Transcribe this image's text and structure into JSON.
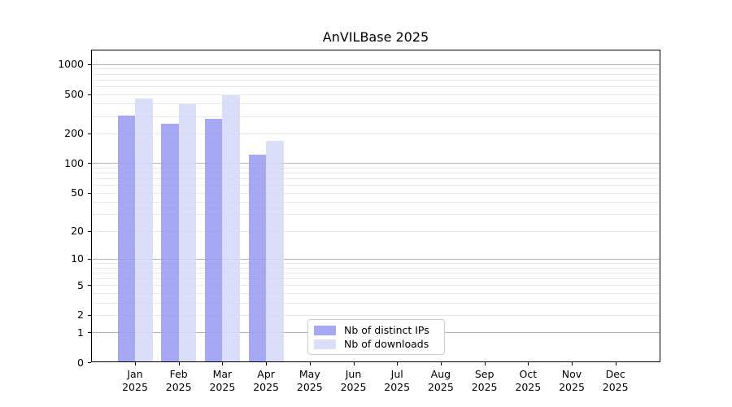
{
  "chart_data": {
    "type": "bar",
    "title": "AnVILBase 2025",
    "x": {
      "categories": [
        {
          "label": "Jan",
          "sublabel": "2025"
        },
        {
          "label": "Feb",
          "sublabel": "2025"
        },
        {
          "label": "Mar",
          "sublabel": "2025"
        },
        {
          "label": "Apr",
          "sublabel": "2025"
        },
        {
          "label": "May",
          "sublabel": "2025"
        },
        {
          "label": "Jun",
          "sublabel": "2025"
        },
        {
          "label": "Jul",
          "sublabel": "2025"
        },
        {
          "label": "Aug",
          "sublabel": "2025"
        },
        {
          "label": "Sep",
          "sublabel": "2025"
        },
        {
          "label": "Oct",
          "sublabel": "2025"
        },
        {
          "label": "Nov",
          "sublabel": "2025"
        },
        {
          "label": "Dec",
          "sublabel": "2025"
        }
      ]
    },
    "y": {
      "scale": "log1p",
      "lim": [
        0,
        1400
      ],
      "ticks": [
        0,
        1,
        2,
        5,
        10,
        20,
        50,
        100,
        200,
        500,
        1000
      ],
      "major_grid_values": [
        1,
        10,
        100,
        1000
      ],
      "minor_grid_values": [
        2,
        3,
        4,
        5,
        6,
        7,
        8,
        9,
        20,
        30,
        40,
        50,
        60,
        70,
        80,
        90,
        200,
        300,
        400,
        500,
        600,
        700,
        800,
        900
      ]
    },
    "series": [
      {
        "name": "Nb of distinct IPs",
        "color": "#9a9cf3",
        "values": [
          306,
          253,
          283,
          121,
          null,
          null,
          null,
          null,
          null,
          null,
          null,
          null
        ]
      },
      {
        "name": "Nb of downloads",
        "color": "#d6d9f8",
        "values": [
          453,
          396,
          485,
          167,
          null,
          null,
          null,
          null,
          null,
          null,
          null,
          null
        ]
      }
    ],
    "grid": {
      "major_color": "#b2b2b2",
      "minor_color": "#e9e9e9"
    },
    "legend": {
      "position": "lower center"
    }
  }
}
